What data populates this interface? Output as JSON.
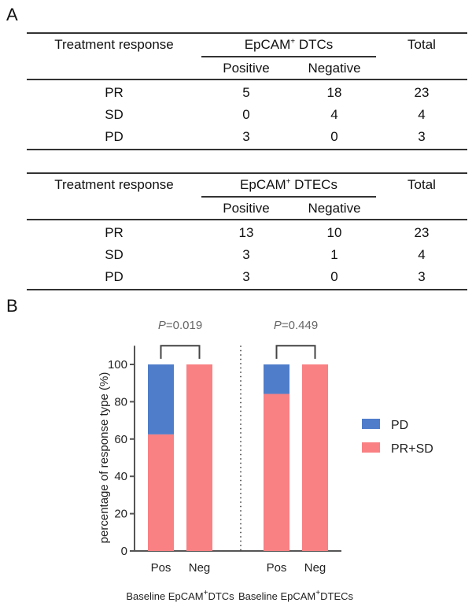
{
  "panel_a_label": "A",
  "panel_b_label": "B",
  "tables": [
    {
      "row_header": "Treatment response",
      "group_header": "EpCAM",
      "group_sup": "+",
      "group_suffix": " DTCs",
      "sub_headers": [
        "Positive",
        "Negative"
      ],
      "total_header": "Total",
      "rows": [
        {
          "label": "PR",
          "positive": "5",
          "negative": "18",
          "total": "23"
        },
        {
          "label": "SD",
          "positive": "0",
          "negative": "4",
          "total": "4"
        },
        {
          "label": "PD",
          "positive": "3",
          "negative": "0",
          "total": "3"
        }
      ]
    },
    {
      "row_header": "Treatment response",
      "group_header": "EpCAM",
      "group_sup": "+",
      "group_suffix": " DTECs",
      "sub_headers": [
        "Positive",
        "Negative"
      ],
      "total_header": "Total",
      "rows": [
        {
          "label": "PR",
          "positive": "13",
          "negative": "10",
          "total": "23"
        },
        {
          "label": "SD",
          "positive": "3",
          "negative": "1",
          "total": "4"
        },
        {
          "label": "PD",
          "positive": "3",
          "negative": "0",
          "total": "3"
        }
      ]
    }
  ],
  "chart_data": {
    "type": "bar",
    "stacked": true,
    "ylabel": "percentage of response type (%)",
    "ylim": [
      0,
      110
    ],
    "yticks": [
      "0",
      "20",
      "40",
      "60",
      "80",
      "100"
    ],
    "groups": [
      {
        "name_prefix": "Baseline EpCAM",
        "name_sup": "+",
        "name_suffix": "DTCs",
        "categories": [
          "Pos",
          "Neg"
        ],
        "p_prefix": "P",
        "p_value": "=0.019"
      },
      {
        "name_prefix": "Baseline EpCAM",
        "name_sup": "+",
        "name_suffix": "DTECs",
        "categories": [
          "Pos",
          "Neg"
        ],
        "p_prefix": "P",
        "p_value": "=0.449"
      }
    ],
    "series": [
      {
        "name": "PR+SD",
        "color": "#f98083",
        "values": [
          [
            62.5,
            100
          ],
          [
            84.2,
            100
          ]
        ]
      },
      {
        "name": "PD",
        "color": "#4f7dca",
        "values": [
          [
            37.5,
            0
          ],
          [
            15.8,
            0
          ]
        ]
      }
    ],
    "legend": {
      "placement": "right",
      "entries": [
        "PD",
        "PR+SD"
      ]
    }
  }
}
